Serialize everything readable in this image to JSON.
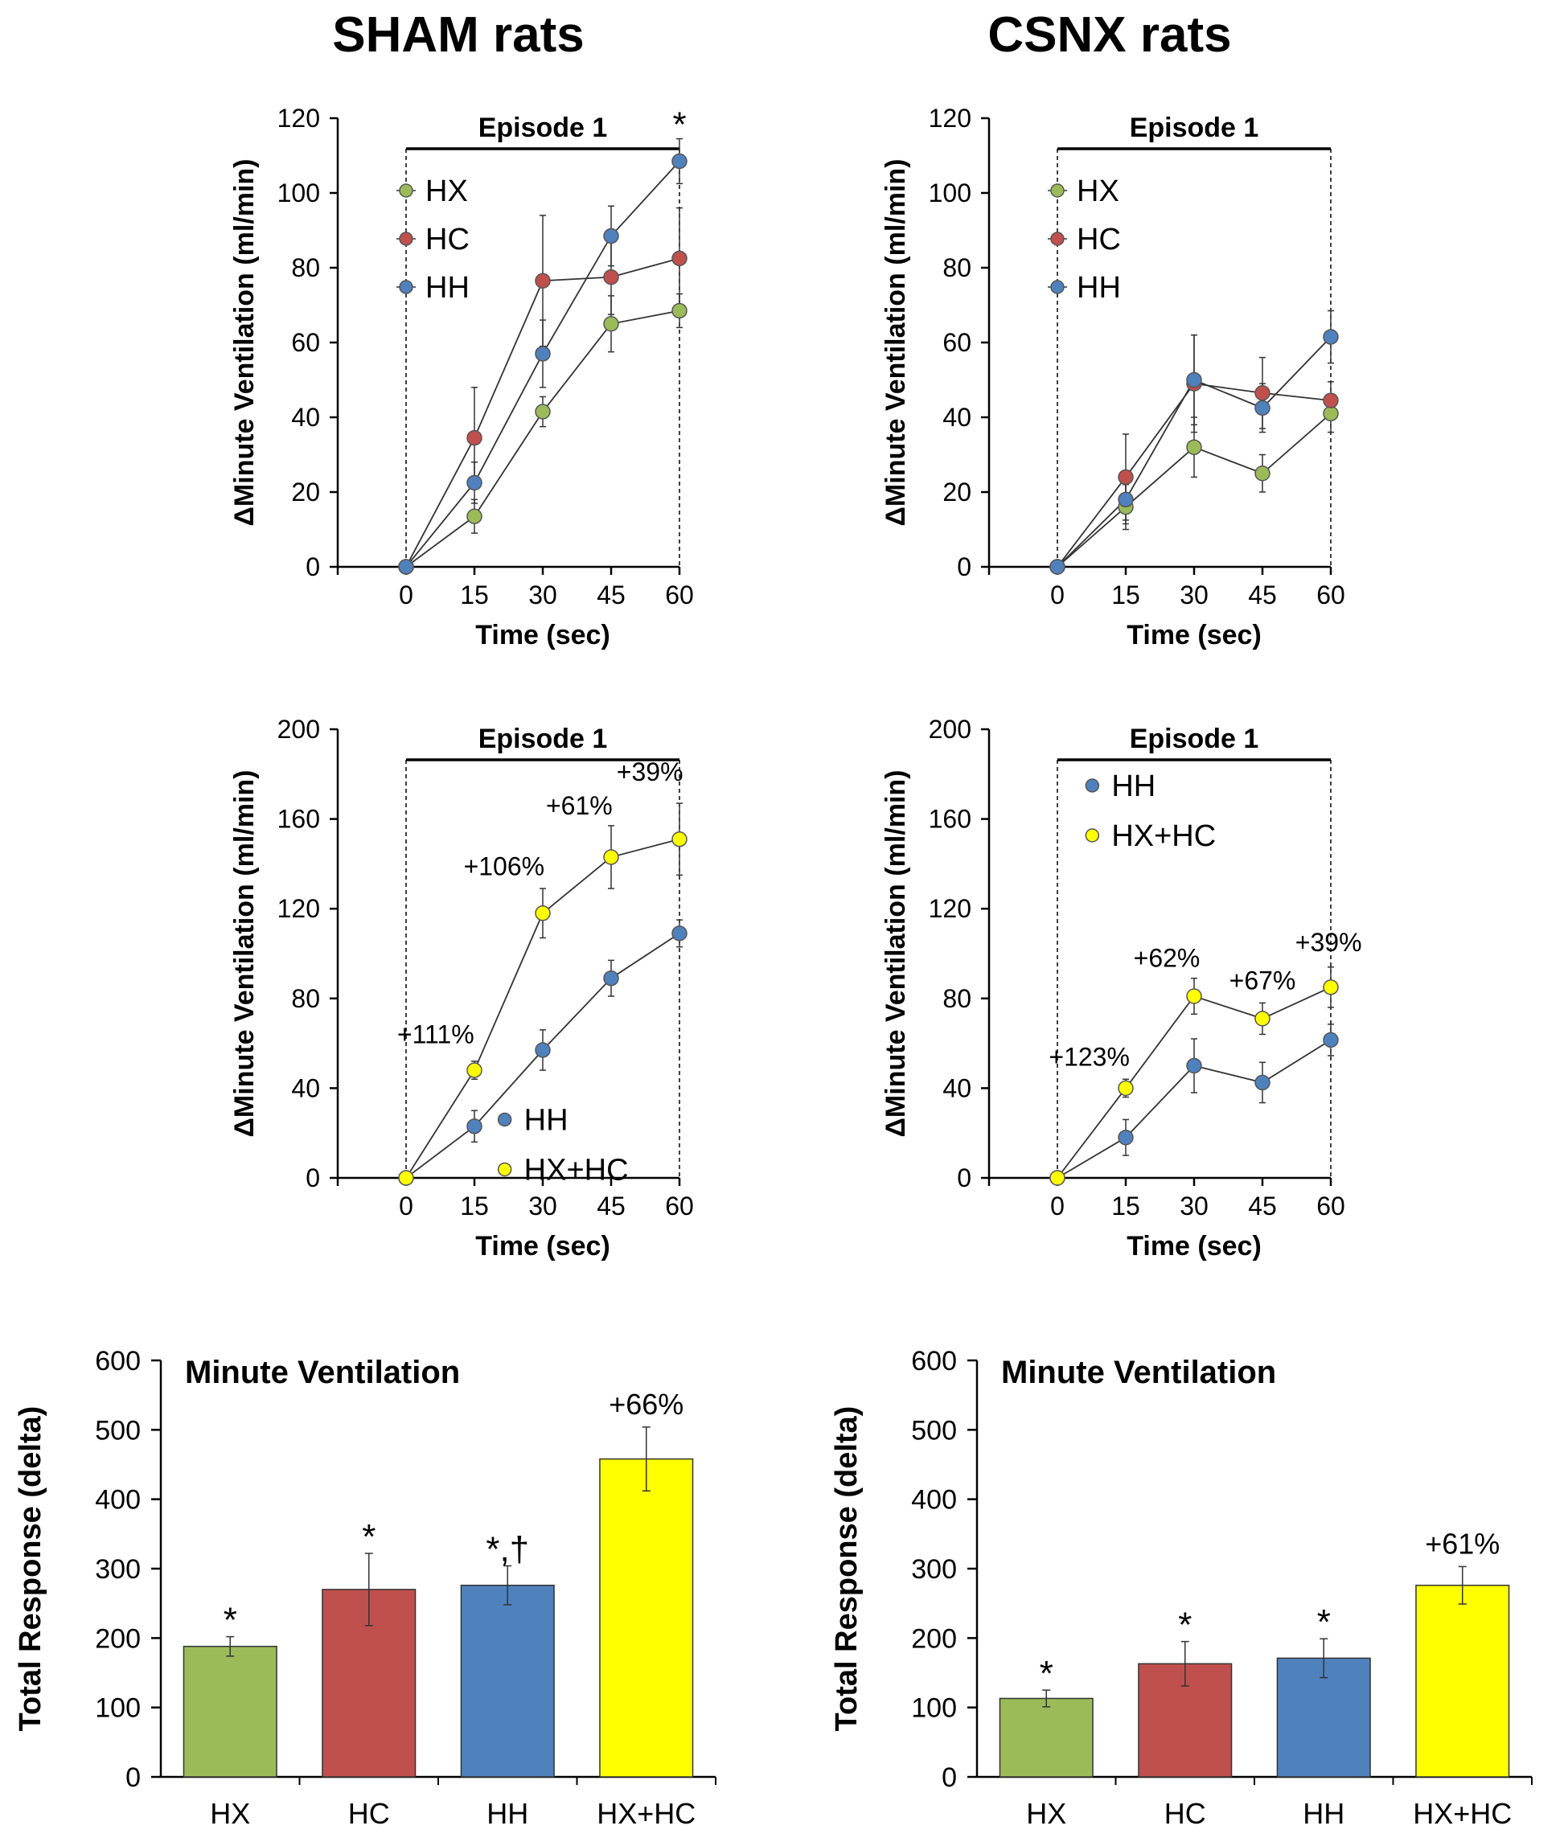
{
  "titles": {
    "left": "SHAM rats",
    "right": "CSNX rats"
  },
  "colors": {
    "HX": "#9BBB59",
    "HC": "#C0504D",
    "HH": "#4F81BD",
    "HXHC": "#FFFF00",
    "axis": "#000000"
  },
  "chart_data": [
    {
      "id": "sham-top",
      "type": "line",
      "title": "Episode 1",
      "xlabel": "Time (sec)",
      "ylabel": "ΔMinute Ventilation (ml/min)",
      "x": [
        0,
        15,
        30,
        45,
        60
      ],
      "xlim": [
        -15,
        60
      ],
      "ylim": [
        0,
        120
      ],
      "yticks": [
        0,
        20,
        40,
        60,
        80,
        100,
        120
      ],
      "series": [
        {
          "name": "HX",
          "color": "#9BBB59",
          "values": [
            0,
            13.5,
            41.5,
            65,
            68.5
          ],
          "err": [
            0,
            4.5,
            4,
            7.5,
            4.5
          ]
        },
        {
          "name": "HC",
          "color": "#C0504D",
          "values": [
            0,
            34.5,
            76.5,
            77.5,
            82.5
          ],
          "err": [
            0,
            13.5,
            17.5,
            10,
            13.5
          ]
        },
        {
          "name": "HH",
          "color": "#4F81BD",
          "values": [
            0,
            22.5,
            57,
            88.5,
            108.5
          ],
          "err": [
            0,
            5.5,
            9,
            8,
            6
          ]
        }
      ],
      "legend_position": "top-left",
      "annotations": [
        {
          "text": "*",
          "x": 60,
          "y": 119
        }
      ]
    },
    {
      "id": "csnx-top",
      "type": "line",
      "title": "Episode 1",
      "xlabel": "Time (sec)",
      "ylabel": "ΔMinute Ventilation (ml/min)",
      "x": [
        0,
        15,
        30,
        45,
        60
      ],
      "xlim": [
        -15,
        60
      ],
      "ylim": [
        0,
        120
      ],
      "yticks": [
        0,
        20,
        40,
        60,
        80,
        100,
        120
      ],
      "series": [
        {
          "name": "HX",
          "color": "#9BBB59",
          "values": [
            0,
            16,
            32,
            25,
            41
          ],
          "err": [
            0,
            6,
            8,
            5,
            5
          ]
        },
        {
          "name": "HC",
          "color": "#C0504D",
          "values": [
            0,
            24,
            49,
            46.5,
            44.5
          ],
          "err": [
            0,
            11.5,
            13,
            9.5,
            5
          ]
        },
        {
          "name": "HH",
          "color": "#4F81BD",
          "values": [
            0,
            18,
            50,
            42.5,
            61.5
          ],
          "err": [
            0,
            6.5,
            12,
            6.5,
            7
          ]
        }
      ],
      "legend_position": "top-left",
      "annotations": []
    },
    {
      "id": "sham-mid",
      "type": "line",
      "title": "Episode 1",
      "xlabel": "Time (sec)",
      "ylabel": "ΔMinute Ventilation (ml/min)",
      "x": [
        0,
        15,
        30,
        45,
        60
      ],
      "xlim": [
        -15,
        60
      ],
      "ylim": [
        0,
        200
      ],
      "yticks": [
        0,
        40,
        80,
        120,
        160,
        200
      ],
      "series": [
        {
          "name": "HH",
          "color": "#4F81BD",
          "values": [
            0,
            23,
            57,
            89,
            109
          ],
          "err": [
            0,
            7,
            9,
            8,
            6
          ]
        },
        {
          "name": "HX+HC",
          "color": "#FFFF00",
          "values": [
            0,
            48,
            118,
            143,
            151
          ],
          "err": [
            0,
            4,
            11,
            14,
            16
          ]
        }
      ],
      "legend_position": "bottom-right",
      "annotations": [
        {
          "text": "+111%",
          "x": 6.5,
          "y": 60
        },
        {
          "text": "+106%",
          "x": 21.5,
          "y": 135
        },
        {
          "text": "+61%",
          "x": 38,
          "y": 162
        },
        {
          "text": "+39%",
          "x": 53.5,
          "y": 177
        }
      ]
    },
    {
      "id": "csnx-mid",
      "type": "line",
      "title": "Episode 1",
      "xlabel": "Time (sec)",
      "ylabel": "ΔMinute Ventilation (ml/min)",
      "x": [
        0,
        15,
        30,
        45,
        60
      ],
      "xlim": [
        -15,
        60
      ],
      "ylim": [
        0,
        200
      ],
      "yticks": [
        0,
        40,
        80,
        120,
        160,
        200
      ],
      "series": [
        {
          "name": "HH",
          "color": "#4F81BD",
          "values": [
            0,
            18,
            50,
            42.5,
            61.5
          ],
          "err": [
            0,
            8,
            12,
            9,
            7
          ]
        },
        {
          "name": "HX+HC",
          "color": "#FFFF00",
          "values": [
            0,
            40,
            81,
            71,
            85
          ],
          "err": [
            0,
            4,
            8,
            7,
            9
          ]
        }
      ],
      "legend_position": "top-left",
      "annotations": [
        {
          "text": "+123%",
          "x": 7,
          "y": 50
        },
        {
          "text": "+62%",
          "x": 24,
          "y": 94
        },
        {
          "text": "+67%",
          "x": 45,
          "y": 84
        },
        {
          "text": "+39%",
          "x": 59.5,
          "y": 101
        }
      ]
    },
    {
      "id": "sham-bar",
      "type": "bar",
      "title": "Minute Ventilation",
      "xlabel": "",
      "ylabel": "Total Response (delta)",
      "categories": [
        "HX",
        "HC",
        "HH",
        "HX+HC"
      ],
      "values": [
        188,
        270,
        276,
        458
      ],
      "err": [
        14,
        52,
        28,
        46
      ],
      "colors": [
        "#9BBB59",
        "#C0504D",
        "#4F81BD",
        "#FFFF00"
      ],
      "labels": [
        "*",
        "*",
        "*,†",
        "+66%"
      ],
      "ylim": [
        0,
        600
      ],
      "yticks": [
        0,
        100,
        200,
        300,
        400,
        500,
        600
      ]
    },
    {
      "id": "csnx-bar",
      "type": "bar",
      "title": "Minute Ventilation",
      "xlabel": "",
      "ylabel": "Total Response (delta)",
      "categories": [
        "HX",
        "HC",
        "HH",
        "HX+HC"
      ],
      "values": [
        113,
        163,
        171,
        276
      ],
      "err": [
        12,
        32,
        28,
        27
      ],
      "colors": [
        "#9BBB59",
        "#C0504D",
        "#4F81BD",
        "#FFFF00"
      ],
      "labels": [
        "*",
        "*",
        "*",
        "+61%"
      ],
      "ylim": [
        0,
        600
      ],
      "yticks": [
        0,
        100,
        200,
        300,
        400,
        500,
        600
      ]
    }
  ]
}
